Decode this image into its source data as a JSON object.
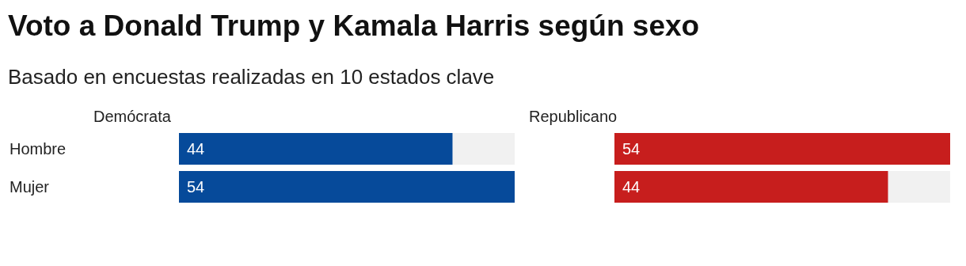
{
  "chart_data": [
    {
      "type": "other",
      "title": "Voto a Donald Trump y Kamala Harris según sexo",
      "subtitle": "Basado en encuestas realizadas en 10 estados clave"
    },
    {
      "type": "bar",
      "orientation": "horizontal",
      "title": "Demócrata",
      "categories": [
        "Hombre",
        "Mujer"
      ],
      "values": [
        44,
        54
      ],
      "color": "#064a9a",
      "data_labels": true
    },
    {
      "type": "bar",
      "orientation": "horizontal",
      "title": "Republicano",
      "categories": [
        null,
        null
      ],
      "values": [
        54,
        44
      ],
      "color": "#c71e1d",
      "data_labels": true,
      "tick_labels": false
    }
  ]
}
